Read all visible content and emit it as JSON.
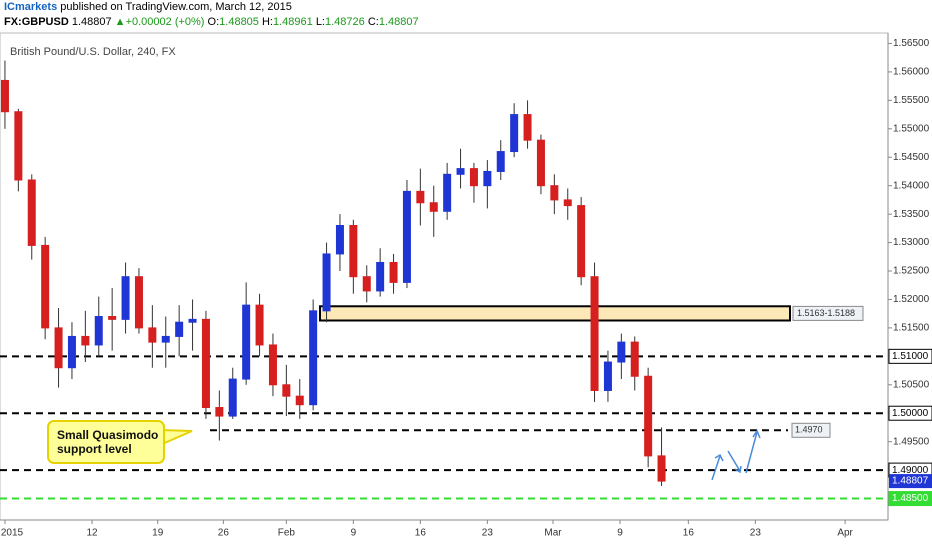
{
  "chart_data": {
    "type": "candlestick",
    "header": {
      "publisher": "ICmarkets",
      "published": "published on TradingView.com, March 12, 2015"
    },
    "quote": {
      "symbol": "FX:GBPUSD",
      "price": 1.48807,
      "arrow": "▲",
      "change": "+0.00002",
      "change_pct": "(+0%)",
      "o_label": "O:",
      "o": 1.48805,
      "h_label": "H:",
      "h": 1.48961,
      "l_label": "L:",
      "l": 1.48726,
      "c_label": "C:",
      "c": 1.48807
    },
    "title": "British Pound/U.S. Dollar, 240, FX",
    "up_color": "#1f36d4",
    "down_color": "#d61f1f",
    "open": [
      1.5585,
      1.553,
      1.541,
      1.5295,
      1.515,
      1.508,
      1.5135,
      1.512,
      1.517,
      1.5165,
      1.524,
      1.515,
      1.5125,
      1.5135,
      1.516,
      1.5165,
      1.501,
      1.4995,
      1.506,
      1.519,
      1.512,
      1.505,
      1.503,
      1.5015,
      1.518,
      1.528,
      1.533,
      1.524,
      1.5215,
      1.5265,
      1.523,
      1.539,
      1.537,
      1.5355,
      1.542,
      1.543,
      1.54,
      1.5425,
      1.546,
      1.5525,
      1.548,
      1.54,
      1.5375,
      1.5365,
      1.524,
      1.504,
      1.509,
      1.5125,
      1.5065,
      1.4925
    ],
    "high": [
      1.562,
      1.5535,
      1.542,
      1.531,
      1.5185,
      1.516,
      1.518,
      1.5205,
      1.522,
      1.5265,
      1.5255,
      1.519,
      1.517,
      1.519,
      1.52,
      1.518,
      1.504,
      1.508,
      1.523,
      1.521,
      1.514,
      1.5085,
      1.506,
      1.52,
      1.53,
      1.535,
      1.534,
      1.526,
      1.529,
      1.528,
      1.541,
      1.543,
      1.54,
      1.544,
      1.5465,
      1.544,
      1.5445,
      1.548,
      1.5545,
      1.555,
      1.549,
      1.542,
      1.5395,
      1.538,
      1.5265,
      1.511,
      1.514,
      1.5135,
      1.508,
      1.4975
    ],
    "low": [
      1.55,
      1.539,
      1.527,
      1.513,
      1.5045,
      1.506,
      1.509,
      1.51,
      1.511,
      1.514,
      1.514,
      1.508,
      1.508,
      1.51,
      1.511,
      1.499,
      1.4952,
      1.499,
      1.505,
      1.51,
      1.503,
      1.4995,
      1.499,
      1.5005,
      1.516,
      1.525,
      1.521,
      1.5195,
      1.5205,
      1.521,
      1.522,
      1.533,
      1.531,
      1.534,
      1.5395,
      1.537,
      1.536,
      1.541,
      1.545,
      1.5465,
      1.5385,
      1.535,
      1.534,
      1.5225,
      1.502,
      1.502,
      1.506,
      1.504,
      1.4905,
      1.4872
    ],
    "close": [
      1.553,
      1.541,
      1.5295,
      1.515,
      1.508,
      1.5135,
      1.512,
      1.517,
      1.5165,
      1.524,
      1.515,
      1.5125,
      1.5135,
      1.516,
      1.5165,
      1.501,
      1.4995,
      1.506,
      1.519,
      1.512,
      1.505,
      1.503,
      1.5015,
      1.518,
      1.528,
      1.533,
      1.524,
      1.5215,
      1.5265,
      1.523,
      1.539,
      1.537,
      1.5355,
      1.542,
      1.543,
      1.54,
      1.5425,
      1.546,
      1.5525,
      1.548,
      1.54,
      1.5375,
      1.5365,
      1.524,
      1.504,
      1.509,
      1.5125,
      1.5065,
      1.4925,
      1.48807
    ],
    "xlim": [
      -0.37,
      65.9
    ],
    "xticks": [
      {
        "value": 0,
        "label": "2015"
      },
      {
        "value": 6.5,
        "label": "12"
      },
      {
        "value": 11.4,
        "label": "19"
      },
      {
        "value": 16.3,
        "label": "26"
      },
      {
        "value": 21,
        "label": "Feb"
      },
      {
        "value": 26,
        "label": "9"
      },
      {
        "value": 31,
        "label": "16"
      },
      {
        "value": 36,
        "label": "23"
      },
      {
        "value": 40.9,
        "label": "Mar"
      },
      {
        "value": 45.9,
        "label": "9"
      },
      {
        "value": 51,
        "label": "16"
      },
      {
        "value": 56,
        "label": "23"
      },
      {
        "value": 62.7,
        "label": "Apr"
      }
    ],
    "ylim": [
      1.48123,
      1.56684
    ],
    "yticks": [
      {
        "value": 1.495,
        "label": "1.49500"
      },
      {
        "value": 1.505,
        "label": "1.50500"
      },
      {
        "value": 1.515,
        "label": "1.51500"
      },
      {
        "value": 1.52,
        "label": "1.52000"
      },
      {
        "value": 1.525,
        "label": "1.52500"
      },
      {
        "value": 1.53,
        "label": "1.53000"
      },
      {
        "value": 1.535,
        "label": "1.53500"
      },
      {
        "value": 1.54,
        "label": "1.54000"
      },
      {
        "value": 1.545,
        "label": "1.54500"
      },
      {
        "value": 1.55,
        "label": "1.55000"
      },
      {
        "value": 1.555,
        "label": "1.55500"
      },
      {
        "value": 1.56,
        "label": "1.56000"
      },
      {
        "value": 1.565,
        "label": "1.56500"
      }
    ],
    "levels": [
      {
        "value": 1.51,
        "label": "1.51000",
        "color": "#000000"
      },
      {
        "value": 1.5,
        "label": "1.50000",
        "color": "#000000"
      },
      {
        "value": 1.49,
        "label": "1.49000",
        "color": "#000000"
      },
      {
        "value": 1.485,
        "label": "1.48500",
        "color": "#33dd33"
      }
    ],
    "support": {
      "value": 1.497,
      "label": "1.4970"
    },
    "zone": {
      "low": 1.5163,
      "high": 1.5188,
      "label": "1.5163-1.5188",
      "color": "#fde9b8"
    },
    "last_price": {
      "value": 1.48807,
      "label": "1.48807",
      "color": "#1f36d4"
    },
    "annotation": {
      "lines": [
        "Small Quasimodo",
        "support level"
      ],
      "color": "#ffff99"
    }
  }
}
